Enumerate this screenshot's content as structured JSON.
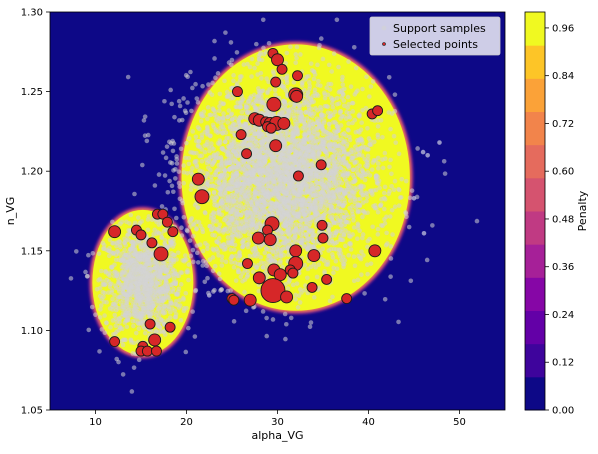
{
  "chart_data": {
    "type": "scatter",
    "xlabel": "alpha_VG",
    "ylabel": "n_VG",
    "xlim": [
      5,
      55
    ],
    "ylim": [
      1.05,
      1.3
    ],
    "x_ticks": [
      "10",
      "20",
      "30",
      "40",
      "50"
    ],
    "y_ticks": [
      "1.05",
      "1.10",
      "1.15",
      "1.20",
      "1.25",
      "1.30"
    ],
    "background": "penalty heatmap (plasma colormap), penalty ≈ 0 inside two ellipses and 1 outside",
    "regions": [
      {
        "center": [
          15.2,
          1.13
        ],
        "semi_axes": [
          5.6,
          0.046
        ]
      },
      {
        "center": [
          32.0,
          1.196
        ],
        "semi_axes": [
          12.6,
          0.084
        ]
      }
    ],
    "colorbar": {
      "label": "Penalty",
      "range": [
        0.0,
        1.0
      ],
      "ticks": [
        "0.00",
        "0.12",
        "0.24",
        "0.36",
        "0.48",
        "0.60",
        "0.72",
        "0.84",
        "0.96"
      ],
      "colors": [
        "#0d0887",
        "#3e049c",
        "#6300a7",
        "#8606a6",
        "#a62098",
        "#c03a83",
        "#d5536f",
        "#e56b5d",
        "#f2844b",
        "#fba238",
        "#fdc527",
        "#f0f921"
      ]
    },
    "legend": {
      "position": "top-right",
      "entries": [
        {
          "label": "Support samples",
          "color": "#d3d3d3"
        },
        {
          "label": "Selected points",
          "color": "#d62728"
        }
      ]
    },
    "series": [
      {
        "name": "Support samples",
        "color": "#d3d3d3",
        "clouds": [
          {
            "center": [
              15.2,
              1.13
            ],
            "spread": [
              2.1,
              0.017
            ],
            "count": 1200
          },
          {
            "center": [
              30.5,
              1.196
            ],
            "spread": [
              5.0,
              0.03
            ],
            "count": 4200
          }
        ],
        "outliers": [
          [
            46.0,
            1.212
          ],
          [
            46.5,
            1.21
          ],
          [
            47.8,
            1.218
          ],
          [
            46.1,
            1.161
          ],
          [
            45.0,
            1.183
          ],
          [
            22.5,
            1.122
          ]
        ]
      },
      {
        "name": "Selected points",
        "color": "#d62728",
        "points": [
          [
            12.1,
            1.162,
            6
          ],
          [
            14.5,
            1.163,
            5
          ],
          [
            15.0,
            1.16,
            5
          ],
          [
            16.8,
            1.173,
            5
          ],
          [
            17.4,
            1.173,
            5
          ],
          [
            17.9,
            1.168,
            5
          ],
          [
            18.5,
            1.162,
            5
          ],
          [
            16.2,
            1.155,
            5
          ],
          [
            17.2,
            1.148,
            7
          ],
          [
            16.0,
            1.104,
            5
          ],
          [
            18.2,
            1.102,
            5
          ],
          [
            12.1,
            1.093,
            5
          ],
          [
            15.2,
            1.09,
            5
          ],
          [
            15.0,
            1.087,
            5
          ],
          [
            15.7,
            1.087,
            5
          ],
          [
            16.5,
            1.094,
            6
          ],
          [
            16.7,
            1.087,
            5
          ],
          [
            29.5,
            1.274,
            5
          ],
          [
            30.0,
            1.27,
            6
          ],
          [
            30.5,
            1.264,
            5
          ],
          [
            32.2,
            1.26,
            5
          ],
          [
            29.8,
            1.256,
            5
          ],
          [
            25.6,
            1.25,
            5
          ],
          [
            32.0,
            1.248,
            7
          ],
          [
            32.1,
            1.247,
            6
          ],
          [
            29.6,
            1.242,
            7
          ],
          [
            27.5,
            1.233,
            6
          ],
          [
            28.0,
            1.232,
            6
          ],
          [
            28.7,
            1.231,
            5
          ],
          [
            29.2,
            1.23,
            6
          ],
          [
            29.9,
            1.23,
            7
          ],
          [
            30.7,
            1.23,
            6
          ],
          [
            28.9,
            1.228,
            5
          ],
          [
            29.3,
            1.227,
            5
          ],
          [
            26.0,
            1.223,
            5
          ],
          [
            29.8,
            1.216,
            6
          ],
          [
            40.4,
            1.236,
            5
          ],
          [
            41.0,
            1.238,
            5
          ],
          [
            26.6,
            1.211,
            5
          ],
          [
            34.8,
            1.204,
            5
          ],
          [
            21.3,
            1.195,
            6
          ],
          [
            32.3,
            1.197,
            5
          ],
          [
            21.7,
            1.184,
            7
          ],
          [
            29.4,
            1.167,
            7
          ],
          [
            27.9,
            1.158,
            6
          ],
          [
            28.9,
            1.163,
            5
          ],
          [
            29.2,
            1.157,
            6
          ],
          [
            32.0,
            1.15,
            6
          ],
          [
            34.9,
            1.166,
            5
          ],
          [
            35.0,
            1.158,
            5
          ],
          [
            40.7,
            1.15,
            6
          ],
          [
            26.7,
            1.142,
            5
          ],
          [
            32.0,
            1.142,
            7
          ],
          [
            34.0,
            1.147,
            6
          ],
          [
            29.6,
            1.138,
            6
          ],
          [
            30.3,
            1.135,
            6
          ],
          [
            31.4,
            1.138,
            5
          ],
          [
            31.7,
            1.136,
            5
          ],
          [
            28.0,
            1.133,
            6
          ],
          [
            35.4,
            1.132,
            5
          ],
          [
            29.5,
            1.125,
            12
          ],
          [
            33.8,
            1.127,
            5
          ],
          [
            31.0,
            1.121,
            6
          ],
          [
            25.0,
            1.12,
            5
          ],
          [
            25.2,
            1.119,
            5
          ],
          [
            27.0,
            1.119,
            6
          ],
          [
            37.6,
            1.12,
            5
          ]
        ]
      }
    ]
  }
}
